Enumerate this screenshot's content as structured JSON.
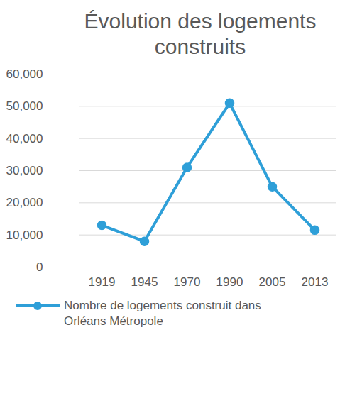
{
  "chart_data": {
    "type": "line",
    "title": "Évolution des logements construits",
    "categories": [
      "1919",
      "1945",
      "1970",
      "1990",
      "2005",
      "2013"
    ],
    "series": [
      {
        "name": "Nombre de logements construit dans Orléans Métropole",
        "color": "#2E9FD8",
        "marker": "circle",
        "values": [
          13000,
          8000,
          31000,
          51000,
          25000,
          11500
        ]
      }
    ],
    "ylim": [
      0,
      60000
    ],
    "yticks": [
      0,
      10000,
      20000,
      30000,
      40000,
      50000,
      60000
    ],
    "grid": true,
    "legend": "bottom"
  }
}
